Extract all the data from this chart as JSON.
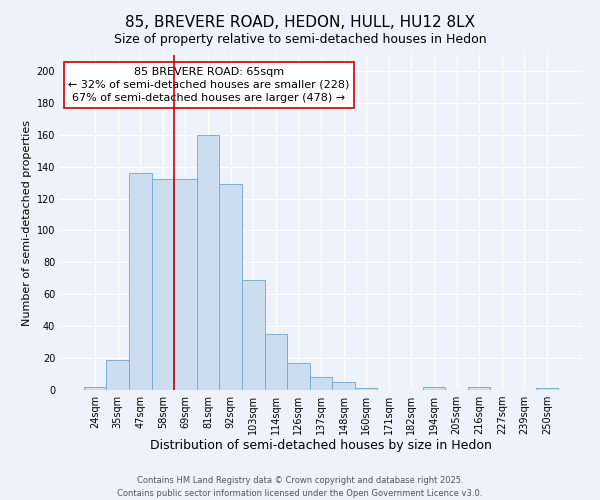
{
  "title": "85, BREVERE ROAD, HEDON, HULL, HU12 8LX",
  "subtitle": "Size of property relative to semi-detached houses in Hedon",
  "xlabel": "Distribution of semi-detached houses by size in Hedon",
  "ylabel": "Number of semi-detached properties",
  "categories": [
    "24sqm",
    "35sqm",
    "47sqm",
    "58sqm",
    "69sqm",
    "81sqm",
    "92sqm",
    "103sqm",
    "114sqm",
    "126sqm",
    "137sqm",
    "148sqm",
    "160sqm",
    "171sqm",
    "182sqm",
    "194sqm",
    "205sqm",
    "216sqm",
    "227sqm",
    "239sqm",
    "250sqm"
  ],
  "values": [
    2,
    19,
    136,
    132,
    132,
    160,
    129,
    69,
    35,
    17,
    8,
    5,
    1,
    0,
    0,
    2,
    0,
    2,
    0,
    0,
    1
  ],
  "bar_color": "#ccddf0",
  "bar_edge_color": "#7bafd4",
  "vline_x_index": 4,
  "vline_color": "#cc0000",
  "ylim": [
    0,
    210
  ],
  "yticks": [
    0,
    20,
    40,
    60,
    80,
    100,
    120,
    140,
    160,
    180,
    200
  ],
  "annotation_title": "85 BREVERE ROAD: 65sqm",
  "annotation_line1": "← 32% of semi-detached houses are smaller (228)",
  "annotation_line2": "67% of semi-detached houses are larger (478) →",
  "annotation_box_color": "#ffffff",
  "annotation_box_edge": "#cc0000",
  "footer_line1": "Contains HM Land Registry data © Crown copyright and database right 2025.",
  "footer_line2": "Contains public sector information licensed under the Open Government Licence v3.0.",
  "background_color": "#eef2fb",
  "grid_color": "#ffffff",
  "title_fontsize": 11,
  "subtitle_fontsize": 9,
  "ylabel_fontsize": 8,
  "xlabel_fontsize": 9,
  "annotation_fontsize": 8,
  "tick_fontsize": 7,
  "footer_fontsize": 6
}
